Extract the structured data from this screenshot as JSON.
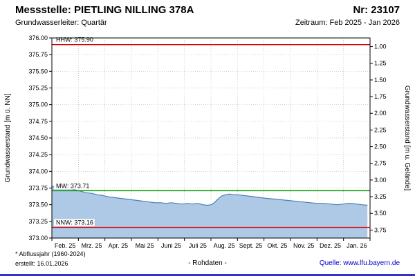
{
  "header": {
    "station_label": "Messstelle: PIETLING NILLING 378A",
    "number_label": "Nr: 23107",
    "aquifer_label": "Grundwasserleiter: Quartär",
    "period_label": "Zeitraum: Feb 2025 - Jan 2026"
  },
  "footer": {
    "footnote": "* Abflussjahr (1960-2024)",
    "created": "erstellt: 16.01.2026",
    "center_label": "- Rohdaten -",
    "source_label": "Quelle: www.lfu.bayern.de"
  },
  "chart_data": {
    "type": "area",
    "title": "",
    "xlabel": "",
    "ylabel_left": "Grundwasserstand [m ü. NN]",
    "ylabel_right": "Grundwasserstand [m u. Gelände]",
    "ylim": [
      373.0,
      376.0
    ],
    "y_tick_step": 0.25,
    "grid": true,
    "x_categories": [
      "Feb. 25",
      "Mrz. 25",
      "Apr. 25",
      "Mai 25",
      "Juni 25",
      "Juli 25",
      "Aug. 25",
      "Sept. 25",
      "Okt. 25",
      "Nov. 25",
      "Dez. 25",
      "Jan. 26"
    ],
    "right_axis": {
      "tick_min": 1.0,
      "tick_max": 3.75,
      "step": 0.25,
      "ground_elevation": 376.87
    },
    "markers": [
      {
        "name": "HHW",
        "label": "HHW: 375.90",
        "value": 375.9,
        "color": "#dd0000"
      },
      {
        "name": "MW",
        "label": "MW: 373.71",
        "value": 373.71,
        "color": "#009900"
      },
      {
        "name": "NNW",
        "label": "NNW: 373.16",
        "value": 373.16,
        "color": "#dd0000"
      }
    ],
    "series": [
      {
        "name": "Grundwasserstand Rohdaten",
        "x": [
          0,
          0.15,
          0.3,
          0.45,
          0.6,
          0.75,
          0.9,
          1.1,
          1.3,
          1.5,
          1.7,
          1.9,
          2.1,
          2.3,
          2.5,
          2.7,
          2.9,
          3.1,
          3.3,
          3.5,
          3.7,
          3.9,
          4.1,
          4.3,
          4.5,
          4.7,
          4.9,
          5.1,
          5.3,
          5.5,
          5.7,
          5.85,
          6.0,
          6.1,
          6.25,
          6.4,
          6.55,
          6.7,
          6.85,
          7.0,
          7.2,
          7.4,
          7.6,
          7.8,
          8.0,
          8.25,
          8.5,
          8.75,
          9.0,
          9.25,
          9.5,
          9.75,
          10.0,
          10.25,
          10.5,
          10.75,
          11.0,
          11.15,
          11.3,
          11.5,
          11.7,
          11.9
        ],
        "values": [
          373.77,
          373.78,
          373.77,
          373.75,
          373.74,
          373.74,
          373.72,
          373.7,
          373.68,
          373.67,
          373.65,
          373.64,
          373.62,
          373.61,
          373.6,
          373.59,
          373.58,
          373.57,
          373.56,
          373.55,
          373.54,
          373.53,
          373.53,
          373.52,
          373.53,
          373.52,
          373.51,
          373.52,
          373.51,
          373.52,
          373.5,
          373.49,
          373.5,
          373.52,
          373.58,
          373.63,
          373.65,
          373.66,
          373.65,
          373.65,
          373.64,
          373.63,
          373.62,
          373.61,
          373.6,
          373.59,
          373.58,
          373.57,
          373.56,
          373.55,
          373.54,
          373.53,
          373.52,
          373.52,
          373.51,
          373.5,
          373.51,
          373.52,
          373.52,
          373.51,
          373.5,
          373.49
        ]
      }
    ],
    "colors": {
      "area_fill": "#adc9e5",
      "area_line": "#4a7fb5",
      "grid": "#bbbbbb",
      "axis": "#000000",
      "link_blue": "#0000cc",
      "bottom_bar": "#3333cc"
    }
  }
}
